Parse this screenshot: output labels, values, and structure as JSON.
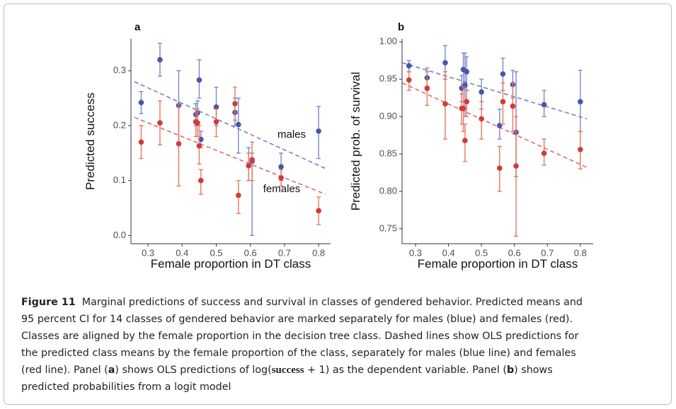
{
  "chart_data": [
    {
      "type": "scatter",
      "panel_title": "a",
      "y_label": "Predicted success",
      "x_label": "Female proportion in DT class",
      "x": [
        0.28,
        0.335,
        0.39,
        0.44,
        0.445,
        0.45,
        0.455,
        0.5,
        0.555,
        0.565,
        0.595,
        0.605,
        0.69,
        0.8
      ],
      "xlim": [
        0.25,
        0.835
      ],
      "xticks": [
        0.3,
        0.4,
        0.5,
        0.6,
        0.7,
        0.8
      ],
      "ylim": [
        -0.015,
        0.358
      ],
      "yticks": [
        {
          "value": 0,
          "label": "0.0"
        },
        0.1,
        0.2,
        0.3
      ],
      "series": [
        {
          "name": "males",
          "color": "#4a55a5",
          "error_color": "#7c86cc",
          "values": [
            0.242,
            0.32,
            0.237,
            0.22,
            0.223,
            0.283,
            0.175,
            0.234,
            0.224,
            0.202,
            0.127,
            0.135,
            0.125,
            0.19
          ],
          "lower": [
            0.222,
            0.29,
            0.17,
            0.2,
            0.2,
            0.25,
            0.16,
            0.2,
            0.2,
            0.15,
            0.1,
            0.0,
            0.1,
            0.14
          ],
          "upper": [
            0.262,
            0.35,
            0.3,
            0.24,
            0.245,
            0.32,
            0.19,
            0.27,
            0.25,
            0.25,
            0.16,
            0.15,
            0.15,
            0.235
          ],
          "trend_x": [
            0.26,
            0.82
          ],
          "trend": [
            0.28,
            0.122
          ]
        },
        {
          "name": "females",
          "color": "#d23a3a",
          "error_color": "#e7775e",
          "values": [
            0.17,
            0.205,
            0.167,
            0.207,
            0.205,
            0.163,
            0.1,
            0.207,
            0.24,
            0.073,
            0.127,
            0.138,
            0.105,
            0.045
          ],
          "lower": [
            0.14,
            0.165,
            0.09,
            0.18,
            0.18,
            0.13,
            0.075,
            0.18,
            0.21,
            0.04,
            0.1,
            0.1,
            0.09,
            0.02
          ],
          "upper": [
            0.2,
            0.245,
            0.24,
            0.23,
            0.23,
            0.2,
            0.12,
            0.23,
            0.27,
            0.1,
            0.15,
            0.17,
            0.12,
            0.07
          ],
          "trend_x": [
            0.26,
            0.82
          ],
          "trend": [
            0.215,
            0.075
          ]
        }
      ]
    },
    {
      "type": "scatter",
      "panel_title": "b",
      "y_label": "Predicted prob. of survival",
      "x_label": "Female proportion in DT class",
      "x": [
        0.28,
        0.335,
        0.39,
        0.44,
        0.445,
        0.45,
        0.455,
        0.5,
        0.555,
        0.565,
        0.595,
        0.605,
        0.69,
        0.8
      ],
      "xlim": [
        0.259,
        0.839
      ],
      "xticks": [
        0.3,
        0.4,
        0.5,
        0.6,
        0.7,
        0.8
      ],
      "ylim": [
        0.73,
        1.004
      ],
      "yticks": [
        0.75,
        {
          "value": 0.8,
          "label": "0.80"
        },
        0.85,
        {
          "value": 0.9,
          "label": "0.90"
        },
        0.95,
        {
          "value": 1,
          "label": "1.00"
        }
      ],
      "series": [
        {
          "name": "males",
          "color": "#4a55a5",
          "error_color": "#7c86cc",
          "values": [
            0.968,
            0.952,
            0.972,
            0.938,
            0.963,
            0.942,
            0.96,
            0.933,
            0.888,
            0.957,
            0.943,
            0.879,
            0.916,
            0.92
          ],
          "lower": [
            0.96,
            0.935,
            0.95,
            0.92,
            0.94,
            0.9,
            0.935,
            0.91,
            0.87,
            0.935,
            0.925,
            0.82,
            0.9,
            0.88
          ],
          "upper": [
            0.975,
            0.965,
            0.995,
            0.955,
            0.985,
            0.985,
            0.98,
            0.95,
            0.91,
            0.978,
            0.962,
            0.96,
            0.935,
            0.962
          ],
          "trend_x": [
            0.26,
            0.82
          ],
          "trend": [
            0.972,
            0.897
          ]
        },
        {
          "name": "females",
          "color": "#d23a3a",
          "error_color": "#e7775e",
          "values": [
            0.949,
            0.938,
            0.917,
            0.911,
            0.911,
            0.868,
            0.92,
            0.897,
            0.831,
            0.92,
            0.914,
            0.834,
            0.851,
            0.856
          ],
          "lower": [
            0.935,
            0.915,
            0.87,
            0.89,
            0.88,
            0.84,
            0.9,
            0.87,
            0.8,
            0.89,
            0.88,
            0.74,
            0.835,
            0.83
          ],
          "upper": [
            0.96,
            0.96,
            0.96,
            0.93,
            0.94,
            0.89,
            0.935,
            0.92,
            0.86,
            0.945,
            0.945,
            0.9,
            0.87,
            0.88
          ],
          "trend_x": [
            0.26,
            0.82
          ],
          "trend": [
            0.945,
            0.832
          ]
        }
      ]
    }
  ],
  "caption": {
    "lines": [
      [
        {
          "text": "Figure 11",
          "style": "bold"
        },
        {
          "text": "  Marginal predictions of success and survival in classes of gendered behavior. Predicted means and"
        }
      ],
      [
        {
          "text": "95 percent CI for 14 classes of gendered behavior are marked separately for males (blue) and females (red)."
        }
      ],
      [
        {
          "text": "Classes are aligned by the female proportion in the decision tree class. Dashed lines show OLS predictions for"
        }
      ],
      [
        {
          "text": "the predicted class means by the female proportion of the class, separately for males (blue line) and females"
        }
      ],
      [
        {
          "text": "(red line). Panel ("
        },
        {
          "text": "a",
          "style": "bold"
        },
        {
          "text": ") shows OLS predictions of log("
        },
        {
          "text": "success",
          "style": "serif-bold"
        },
        {
          "text": " + 1) as the dependent variable. Panel ("
        },
        {
          "text": "b",
          "style": "bold"
        },
        {
          "text": ") shows"
        }
      ],
      [
        {
          "text": "predicted probabilities from a logit model"
        }
      ]
    ]
  }
}
